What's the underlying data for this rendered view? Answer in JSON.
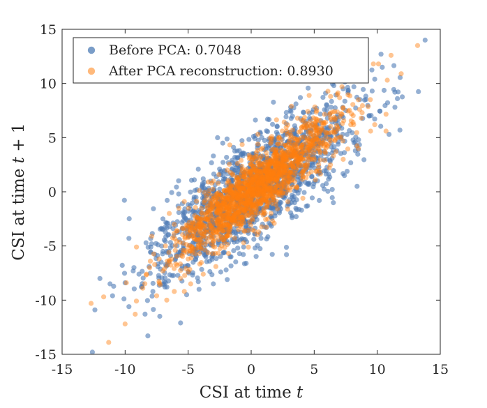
{
  "chart_data": {
    "type": "scatter",
    "title": "",
    "xlabel": "CSI at time t",
    "ylabel": "CSI at time t + 1",
    "xlim": [
      -15,
      15
    ],
    "ylim": [
      -15,
      15
    ],
    "xticks": [
      -15,
      -10,
      -5,
      0,
      5,
      10,
      15
    ],
    "yticks": [
      -15,
      -10,
      -5,
      0,
      5,
      10,
      15
    ],
    "xtick_labels": [
      "-15",
      "-10",
      "-5",
      "0",
      "5",
      "10",
      "15"
    ],
    "ytick_labels": [
      "-15",
      "-10",
      "-5",
      "0",
      "5",
      "10",
      "15"
    ],
    "grid": false,
    "legend_position": "top-left",
    "series": [
      {
        "name": "Before PCA: 0.7048",
        "color": "#4e7cb6",
        "correlation": 0.7048,
        "points": [
          [
            13.8,
            14.0
          ],
          [
            -12.6,
            -14.8
          ],
          [
            -12.4,
            -10.9
          ],
          [
            -11.2,
            -8.5
          ],
          [
            -8.2,
            -13.3
          ],
          [
            -10.0,
            -8.4
          ],
          [
            -9.7,
            -10.6
          ],
          [
            -5.6,
            -12.1
          ],
          [
            -9.3,
            -7.0
          ],
          [
            -9.7,
            -4.3
          ],
          [
            -7.0,
            -2.5
          ],
          [
            -7.9,
            -4.8
          ],
          [
            -4.3,
            0.2
          ],
          [
            -4.0,
            -4.3
          ],
          [
            -3.8,
            1.2
          ],
          [
            -3.0,
            3.3
          ],
          [
            -2.4,
            1.9
          ],
          [
            -1.2,
            2.7
          ],
          [
            0.5,
            4.3
          ],
          [
            1.3,
            6.7
          ],
          [
            3.1,
            7.5
          ],
          [
            3.9,
            8.7
          ],
          [
            5.9,
            9.1
          ],
          [
            7.3,
            9.5
          ],
          [
            9.6,
            9.3
          ],
          [
            10.4,
            11.5
          ],
          [
            10.3,
            12.7
          ],
          [
            9.8,
            10.4
          ],
          [
            11.6,
            8.6
          ],
          [
            11.4,
            9.2
          ],
          [
            11.8,
            5.7
          ],
          [
            11.4,
            7.8
          ],
          [
            7.2,
            7.0
          ],
          [
            6.2,
            5.9
          ],
          [
            5.4,
            1.8
          ],
          [
            3.7,
            2.7
          ],
          [
            1.5,
            -1.5
          ],
          [
            2.8,
            -5.8
          ],
          [
            0.7,
            -1.7
          ],
          [
            -0.6,
            -5.1
          ],
          [
            -0.4,
            -6.6
          ],
          [
            -1.9,
            -8.1
          ],
          [
            -3.0,
            -8.5
          ],
          [
            -3.8,
            -4.2
          ],
          [
            -6.0,
            -6.2
          ],
          [
            -8.1,
            -6.9
          ],
          [
            -12.0,
            -8.0
          ],
          [
            -11.0,
            -9.6
          ],
          [
            -5.1,
            -3.4
          ],
          [
            -5.0,
            -1.2
          ],
          [
            -6.0,
            -3.1
          ],
          [
            -2.6,
            -4.7
          ],
          [
            -1.1,
            -1.0
          ],
          [
            0.5,
            0.4
          ],
          [
            1.9,
            2.5
          ],
          [
            3.0,
            3.1
          ],
          [
            4.6,
            4.9
          ],
          [
            6.8,
            3.8
          ],
          [
            8.4,
            0.5
          ],
          [
            8.5,
            3.9
          ],
          [
            7.4,
            1.5
          ],
          [
            6.8,
            5.7
          ],
          [
            5.4,
            -0.8
          ],
          [
            2.7,
            5.4
          ],
          [
            -0.2,
            2.2
          ],
          [
            -2.0,
            -1.0
          ],
          [
            -3.3,
            -2.9
          ],
          [
            -4.4,
            -5.8
          ],
          [
            -5.5,
            -7.1
          ],
          [
            -6.9,
            -8.3
          ],
          [
            -7.8,
            -9.2
          ],
          [
            -8.9,
            -7.6
          ],
          [
            -7.0,
            -5.5
          ],
          [
            -3.3,
            -6.4
          ],
          [
            -1.6,
            -6.0
          ],
          [
            1.2,
            -3.3
          ],
          [
            3.2,
            -1.0
          ],
          [
            4.6,
            0.8
          ],
          [
            5.3,
            2.8
          ],
          [
            1.4,
            4.7
          ],
          [
            -1.4,
            4.1
          ],
          [
            -3.4,
            -0.1
          ],
          [
            -4.8,
            -2.6
          ],
          [
            0.3,
            -3.9
          ],
          [
            6.0,
            7.6
          ],
          [
            4.1,
            6.5
          ],
          [
            2.0,
            1.3
          ],
          [
            -2.2,
            -2.5
          ]
        ]
      },
      {
        "name": "After PCA reconstruction: 0.8930",
        "color": "#ff7f0e",
        "correlation": 0.893,
        "points": [
          [
            13.2,
            13.5
          ],
          [
            -12.7,
            -10.3
          ],
          [
            -11.3,
            -13.9
          ],
          [
            -11.7,
            -9.7
          ],
          [
            -10.0,
            -12.2
          ],
          [
            -9.2,
            -11.3
          ],
          [
            -9.9,
            -8.4
          ],
          [
            -8.6,
            -8.9
          ],
          [
            -8.0,
            -6.4
          ],
          [
            -9.1,
            -5.1
          ],
          [
            -7.3,
            -6.2
          ],
          [
            -6.7,
            -10.0
          ],
          [
            -5.6,
            -8.0
          ],
          [
            -5.3,
            -9.2
          ],
          [
            -6.8,
            -5.0
          ],
          [
            -6.1,
            -3.0
          ],
          [
            -4.4,
            -5.3
          ],
          [
            -4.4,
            -2.5
          ],
          [
            -3.3,
            -4.2
          ],
          [
            -2.6,
            -1.7
          ],
          [
            -1.8,
            -3.6
          ],
          [
            -0.9,
            -0.8
          ],
          [
            0.0,
            -1.9
          ],
          [
            0.5,
            0.5
          ],
          [
            1.4,
            1.2
          ],
          [
            2.2,
            0.0
          ],
          [
            2.5,
            2.6
          ],
          [
            3.5,
            1.7
          ],
          [
            3.7,
            4.1
          ],
          [
            4.5,
            3.3
          ],
          [
            5.2,
            5.4
          ],
          [
            5.8,
            4.6
          ],
          [
            6.3,
            6.8
          ],
          [
            6.9,
            5.8
          ],
          [
            7.3,
            7.7
          ],
          [
            7.9,
            6.2
          ],
          [
            8.5,
            8.5
          ],
          [
            8.6,
            7.6
          ],
          [
            9.7,
            11.8
          ],
          [
            10.1,
            11.8
          ],
          [
            10.8,
            10.3
          ],
          [
            11.1,
            12.6
          ],
          [
            11.9,
            10.9
          ],
          [
            10.7,
            5.6
          ],
          [
            9.8,
            6.2
          ],
          [
            8.5,
            4.0
          ],
          [
            7.3,
            3.0
          ],
          [
            6.2,
            2.2
          ],
          [
            5.1,
            1.1
          ],
          [
            4.1,
            -0.6
          ],
          [
            2.9,
            -1.6
          ],
          [
            1.7,
            -2.7
          ],
          [
            0.6,
            -3.7
          ],
          [
            -0.6,
            -4.7
          ],
          [
            -1.8,
            -5.7
          ],
          [
            -2.8,
            -6.9
          ],
          [
            -3.8,
            -7.6
          ],
          [
            -4.8,
            -8.5
          ],
          [
            -6.1,
            -9.2
          ],
          [
            -7.5,
            -9.6
          ],
          [
            -6.5,
            -2.0
          ],
          [
            -5.3,
            -0.9
          ],
          [
            -4.1,
            0.1
          ],
          [
            -3.0,
            1.0
          ],
          [
            -1.9,
            2.0
          ],
          [
            -0.8,
            2.9
          ],
          [
            0.4,
            3.6
          ],
          [
            1.6,
            4.6
          ],
          [
            2.8,
            5.6
          ],
          [
            4.0,
            6.6
          ],
          [
            5.2,
            7.5
          ],
          [
            6.3,
            8.8
          ],
          [
            7.2,
            9.7
          ],
          [
            4.6,
            8.9
          ],
          [
            3.2,
            7.9
          ],
          [
            -8.3,
            -7.6
          ],
          [
            -7.0,
            -7.3
          ],
          [
            -5.0,
            -6.2
          ],
          [
            -3.0,
            -4.5
          ],
          [
            -1.0,
            -2.4
          ],
          [
            1.0,
            -0.3
          ],
          [
            3.0,
            1.8
          ],
          [
            5.0,
            3.6
          ],
          [
            7.0,
            5.0
          ],
          [
            8.8,
            7.3
          ],
          [
            -2.0,
            -0.6
          ],
          [
            2.0,
            3.4
          ],
          [
            -4.0,
            -3.0
          ],
          [
            4.0,
            5.0
          ]
        ]
      }
    ]
  }
}
